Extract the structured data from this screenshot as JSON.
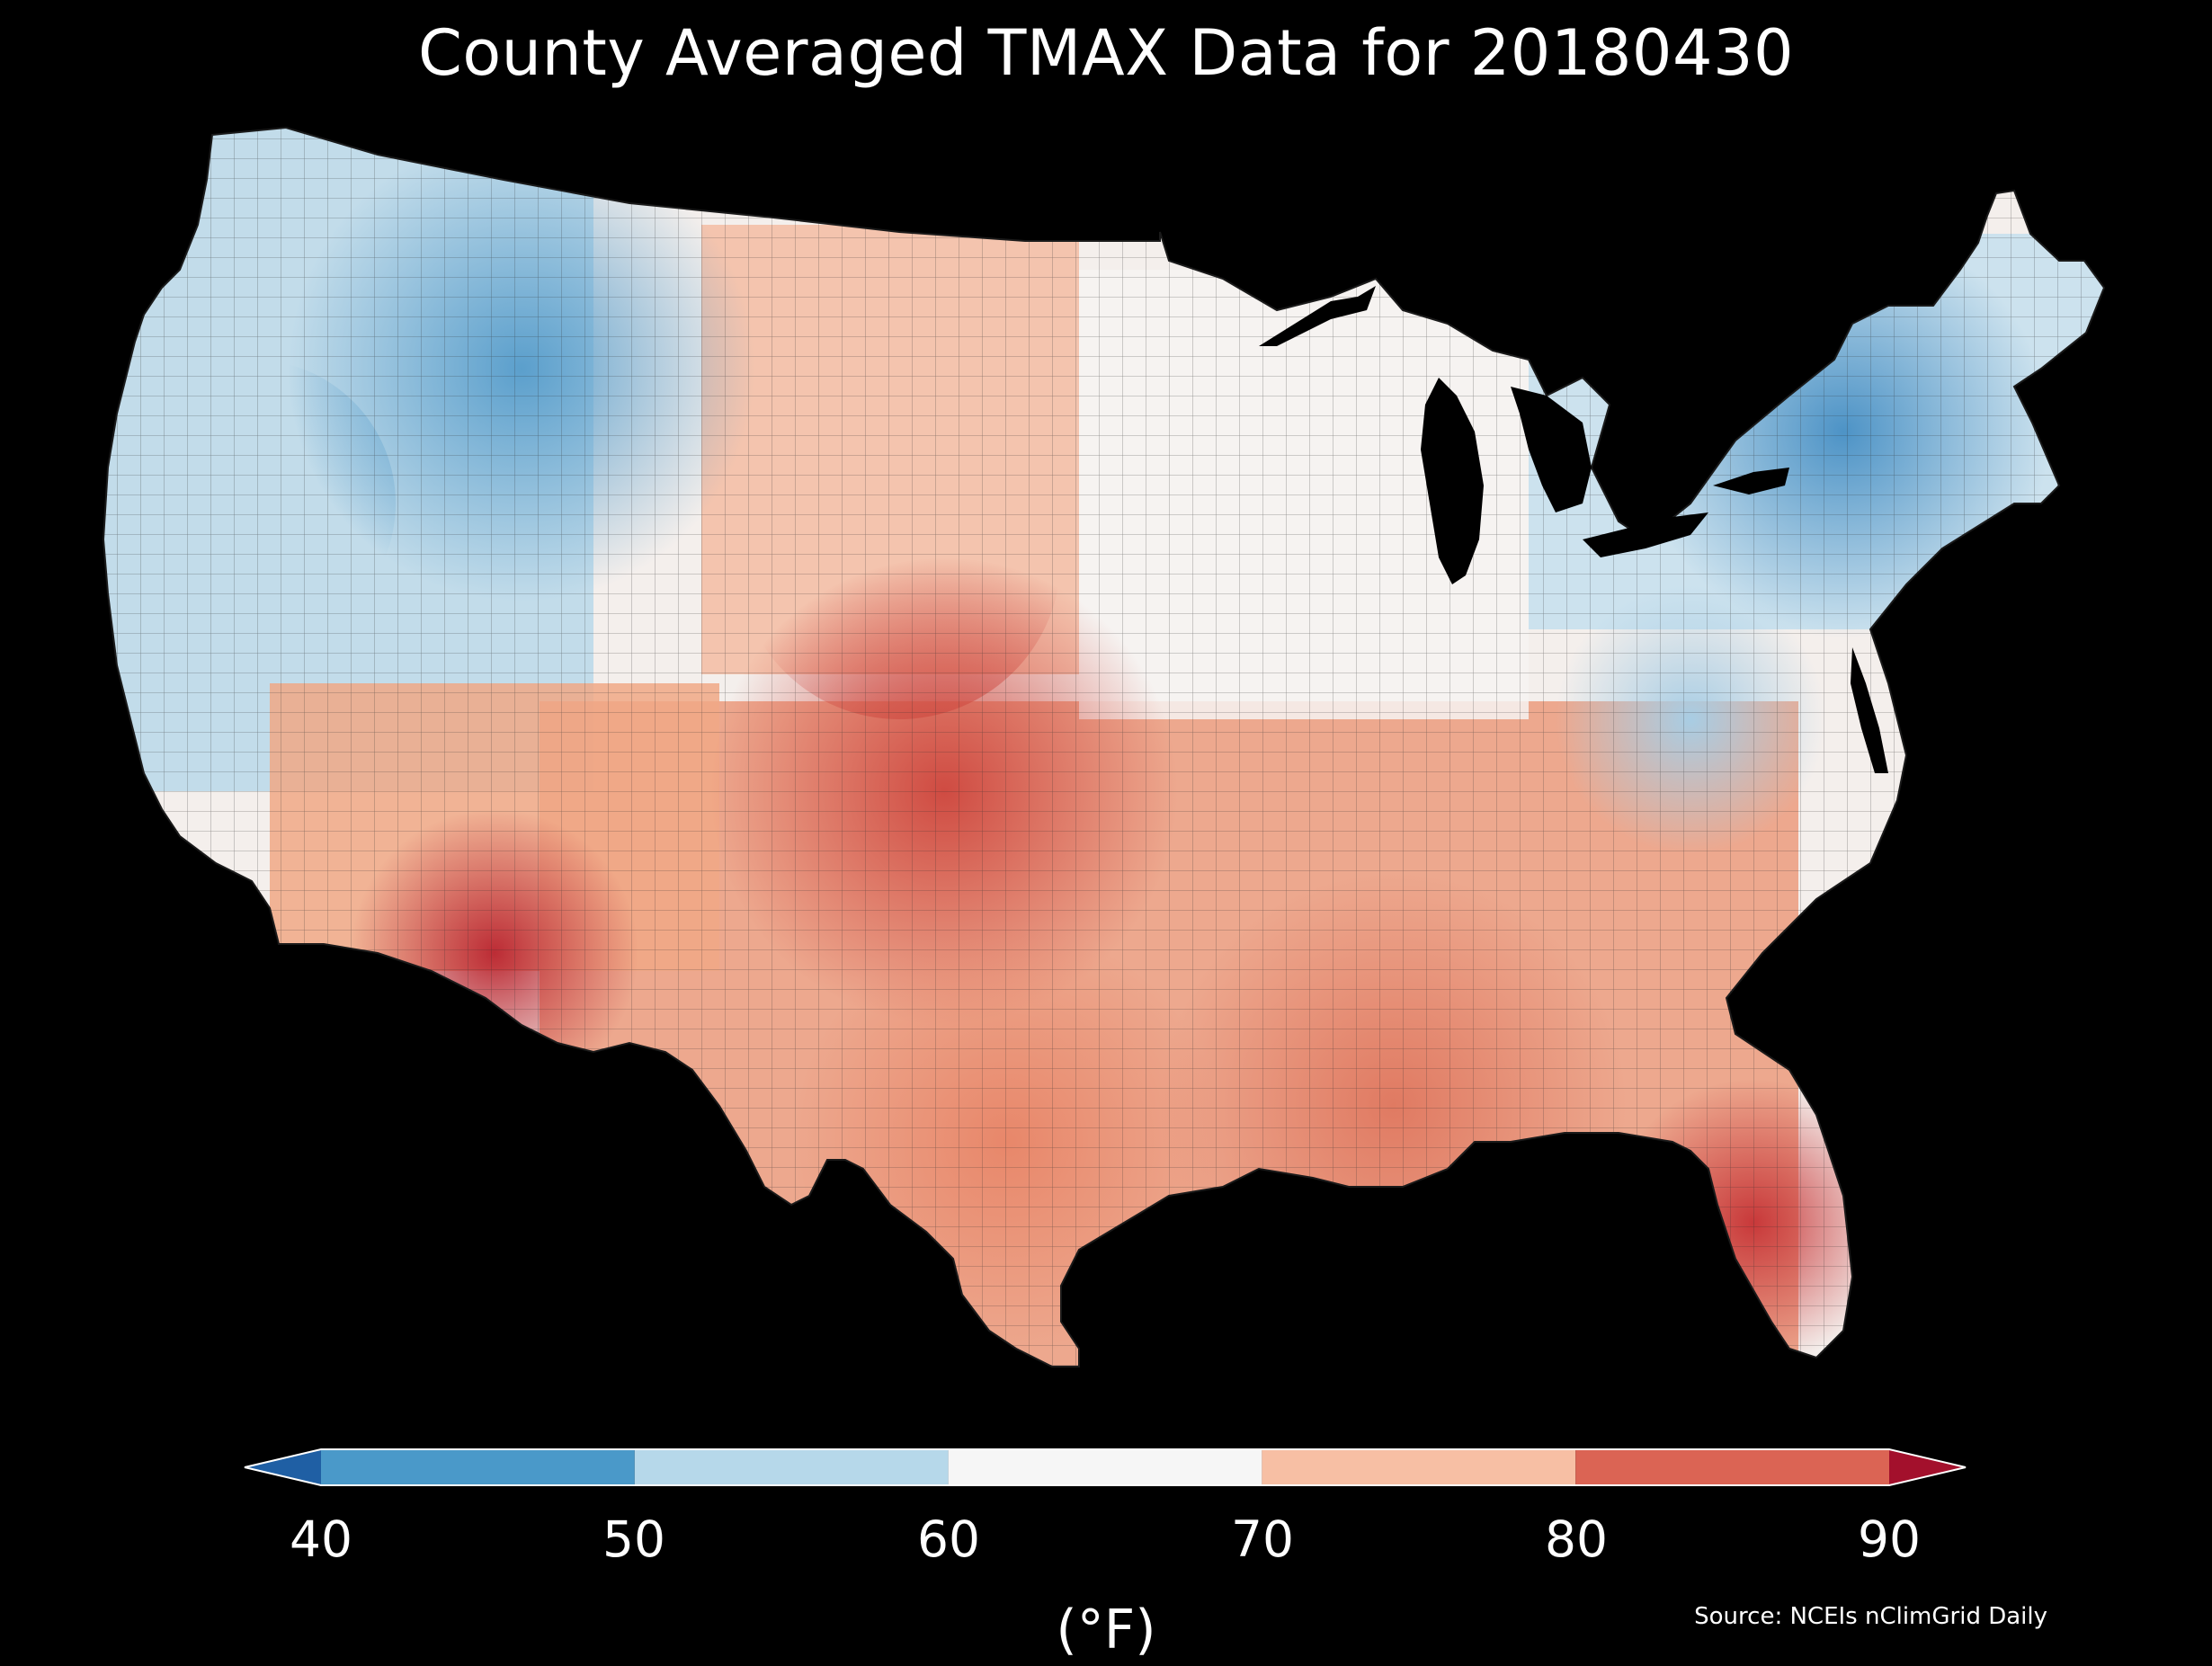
{
  "title": "County Averaged TMAX Data for 20180430",
  "source": "Source: NCEIs nClimGrid Daily",
  "colorbar": {
    "units": "(°F)",
    "ticks": [
      "40",
      "50",
      "60",
      "70",
      "80",
      "90"
    ],
    "bins": [
      {
        "from": null,
        "to": 40,
        "color": "#1f5fa4"
      },
      {
        "from": 40,
        "to": 50,
        "color": "#4a99c9"
      },
      {
        "from": 50,
        "to": 60,
        "color": "#b6d8ea"
      },
      {
        "from": 60,
        "to": 70,
        "color": "#f6f6f6"
      },
      {
        "from": 70,
        "to": 80,
        "color": "#f7bfa4"
      },
      {
        "from": 80,
        "to": 90,
        "color": "#db6454"
      },
      {
        "from": 90,
        "to": null,
        "color": "#a3102c"
      }
    ],
    "extend": "both"
  },
  "map": {
    "region": "Contiguous United States",
    "level": "county",
    "variable": "TMAX",
    "colormap": "RdBu_r (continuous within 40–90 °F)",
    "background": "#000000",
    "boundary_color": "#333333",
    "regional_pattern": [
      {
        "region": "Pacific Northwest & Northern Rockies",
        "tmax_f": "45–55"
      },
      {
        "region": "Great Basin",
        "tmax_f": "50–60"
      },
      {
        "region": "Northern Plains",
        "tmax_f": "70–80"
      },
      {
        "region": "Central & Southern Plains",
        "tmax_f": "80–88"
      },
      {
        "region": "Desert Southwest",
        "tmax_f": "85–90"
      },
      {
        "region": "Upper Midwest & Great Lakes",
        "tmax_f": "60–68"
      },
      {
        "region": "Northeast & Appalachians",
        "tmax_f": "45–55"
      },
      {
        "region": "Southeast & Gulf Coast",
        "tmax_f": "75–85"
      },
      {
        "region": "South Florida",
        "tmax_f": "85–88"
      }
    ]
  }
}
